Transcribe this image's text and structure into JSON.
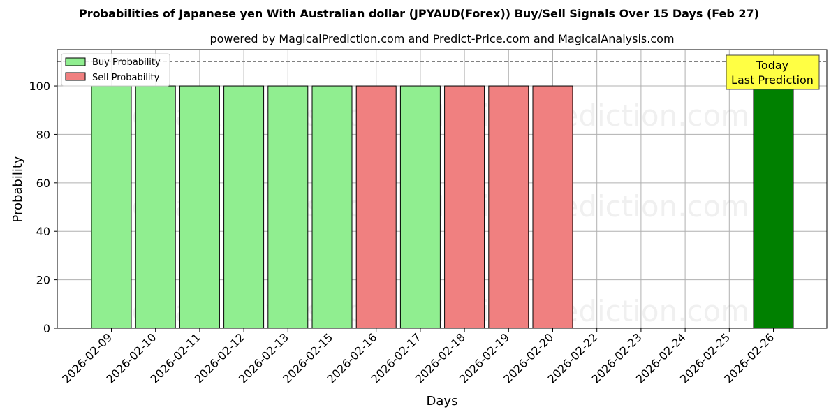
{
  "chart_data": {
    "type": "bar",
    "title": "Probabilities of Japanese yen With Australian dollar (JPYAUD(Forex)) Buy/Sell Signals Over 15 Days (Feb 27)",
    "subtitle": "powered by MagicalPrediction.com and Predict-Price.com and MagicalAnalysis.com",
    "xlabel": "Days",
    "ylabel": "Probability",
    "ylim": [
      0,
      115
    ],
    "yticks": [
      0,
      20,
      40,
      60,
      80,
      100
    ],
    "categories": [
      "2026-02-09",
      "2026-02-10",
      "2026-02-11",
      "2026-02-12",
      "2026-02-13",
      "2026-02-15",
      "2026-02-16",
      "2026-02-17",
      "2026-02-18",
      "2026-02-19",
      "2026-02-20",
      "2026-02-22",
      "2026-02-23",
      "2026-02-24",
      "2026-02-25",
      "2026-02-26"
    ],
    "bars": [
      {
        "category": "2026-02-09",
        "signal": "buy",
        "value": 100
      },
      {
        "category": "2026-02-10",
        "signal": "buy",
        "value": 100
      },
      {
        "category": "2026-02-11",
        "signal": "buy",
        "value": 100
      },
      {
        "category": "2026-02-12",
        "signal": "buy",
        "value": 100
      },
      {
        "category": "2026-02-13",
        "signal": "buy",
        "value": 100
      },
      {
        "category": "2026-02-15",
        "signal": "buy",
        "value": 100
      },
      {
        "category": "2026-02-16",
        "signal": "sell",
        "value": 100
      },
      {
        "category": "2026-02-17",
        "signal": "buy",
        "value": 100
      },
      {
        "category": "2026-02-18",
        "signal": "sell",
        "value": 100
      },
      {
        "category": "2026-02-19",
        "signal": "sell",
        "value": 100
      },
      {
        "category": "2026-02-20",
        "signal": "sell",
        "value": 100
      },
      {
        "category": "2026-02-26",
        "signal": "today",
        "value": 100
      }
    ],
    "reference_line": {
      "y": 110,
      "style": "dashed"
    },
    "legend": {
      "position": "top-left",
      "entries": [
        {
          "label": "Buy Probability",
          "color": "#90ee90"
        },
        {
          "label": "Sell Probability",
          "color": "#f08080"
        }
      ]
    },
    "annotation": {
      "lines": [
        "Today",
        "Last Prediction"
      ],
      "category": "2026-02-26",
      "background": "#ffff44"
    },
    "watermarks": [
      "MagicalAnalysis.com",
      "MagicalPrediction.com"
    ],
    "colors": {
      "buy": "#90ee90",
      "sell": "#f08080",
      "today": "#008000",
      "edge": "#000000",
      "grid": "#b0b0b0"
    },
    "grid": true
  }
}
